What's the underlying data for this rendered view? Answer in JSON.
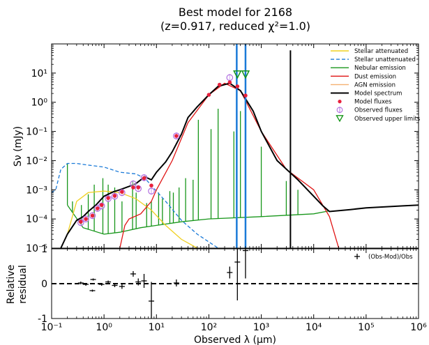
{
  "title_line1": "Best model for 2168",
  "title_line2": "(z=0.917, reduced χ²=1.0)",
  "chart_data": {
    "type": "line",
    "main": {
      "xlabel": "Observed λ (μm)",
      "ylabel": "Sν (mJy)",
      "xscale": "log",
      "yscale": "log",
      "xlim": [
        0.1,
        1000000
      ],
      "ylim": [
        1e-05,
        100
      ],
      "legend_position": "top-right",
      "legend": [
        {
          "label": "Stellar attenuated",
          "color": "#f0d020",
          "style": "line"
        },
        {
          "label": "Stellar unattenuated",
          "color": "#1a7ad8",
          "style": "dashed"
        },
        {
          "label": "Nebular emission",
          "color": "#17961a",
          "style": "line"
        },
        {
          "label": "Dust emission",
          "color": "#e01515",
          "style": "line"
        },
        {
          "label": "AGN emission",
          "color": "#f5b070",
          "style": "line"
        },
        {
          "label": "Model spectrum",
          "color": "#000000",
          "style": "line"
        },
        {
          "label": "Model fluxes",
          "color": "#e8203c",
          "style": "dot"
        },
        {
          "label": "Observed fluxes",
          "color": "#b06ce0",
          "style": "circle"
        },
        {
          "label": "Observed upper limits",
          "color": "#17961a",
          "style": "triangle"
        }
      ],
      "series": {
        "model_spectrum": [
          [
            0.15,
            1e-05
          ],
          [
            0.2,
            3e-05
          ],
          [
            0.3,
            9e-05
          ],
          [
            0.4,
            0.00012
          ],
          [
            0.5,
            0.00018
          ],
          [
            0.7,
            0.0003
          ],
          [
            1,
            0.0006
          ],
          [
            1.5,
            0.00085
          ],
          [
            2,
            0.001
          ],
          [
            3,
            0.0013
          ],
          [
            4,
            0.0016
          ],
          [
            6,
            0.0028
          ],
          [
            8,
            0.0022
          ],
          [
            10,
            0.004
          ],
          [
            15,
            0.009
          ],
          [
            20,
            0.02
          ],
          [
            30,
            0.08
          ],
          [
            40,
            0.3
          ],
          [
            60,
            0.7
          ],
          [
            100,
            1.8
          ],
          [
            150,
            3.5
          ],
          [
            250,
            4.5
          ],
          [
            400,
            2.5
          ],
          [
            700,
            0.5
          ],
          [
            1000,
            0.1
          ],
          [
            2000,
            0.01
          ],
          [
            5000,
            0.0022
          ],
          [
            10000,
            0.0006
          ],
          [
            15000,
            0.00028
          ],
          [
            20000,
            0.00018
          ],
          [
            50000,
            0.00021
          ],
          [
            100000,
            0.00024
          ],
          [
            500000,
            0.00028
          ],
          [
            1000000,
            0.0003
          ]
        ],
        "stellar_attenuated": [
          [
            0.2,
            3e-05
          ],
          [
            0.3,
            0.0004
          ],
          [
            0.5,
            0.0008
          ],
          [
            1,
            0.0009
          ],
          [
            2,
            0.0008
          ],
          [
            4,
            0.0005
          ],
          [
            8,
            0.0002
          ],
          [
            15,
            6e-05
          ],
          [
            30,
            2e-05
          ],
          [
            60,
            1e-05
          ]
        ],
        "stellar_unattenuated": [
          [
            0.1,
            0.0008
          ],
          [
            0.12,
            0.001
          ],
          [
            0.15,
            0.005
          ],
          [
            0.2,
            0.008
          ],
          [
            0.3,
            0.008
          ],
          [
            0.5,
            0.007
          ],
          [
            1,
            0.006
          ],
          [
            2,
            0.004
          ],
          [
            4,
            0.0035
          ],
          [
            6,
            0.0025
          ],
          [
            8,
            0.0014
          ],
          [
            15,
            0.0004
          ],
          [
            30,
            9e-05
          ],
          [
            60,
            3e-05
          ],
          [
            150,
            1e-05
          ]
        ],
        "nebular_emission": [
          [
            0.2,
            0.0003
          ],
          [
            0.4,
            5e-05
          ],
          [
            1,
            3e-05
          ],
          [
            2,
            3.5e-05
          ],
          [
            5,
            5e-05
          ],
          [
            10,
            6e-05
          ],
          [
            30,
            8e-05
          ],
          [
            100,
            0.0001
          ],
          [
            1000,
            0.00012
          ],
          [
            10000,
            0.00015
          ],
          [
            20000,
            0.00019
          ]
        ],
        "dust_emission": [
          [
            2,
            1e-05
          ],
          [
            2.5,
            6e-05
          ],
          [
            3,
            0.0001
          ],
          [
            5,
            0.00015
          ],
          [
            8,
            0.0004
          ],
          [
            10,
            0.001
          ],
          [
            20,
            0.01
          ],
          [
            40,
            0.2
          ],
          [
            100,
            1.8
          ],
          [
            200,
            4.5
          ],
          [
            400,
            2.5
          ],
          [
            1000,
            0.1
          ],
          [
            3000,
            0.005
          ],
          [
            10000,
            0.001
          ],
          [
            20000,
            0.00012
          ],
          [
            30000,
            1e-05
          ]
        ]
      },
      "nebular_lines": [
        [
          0.2,
          0.008
        ],
        [
          0.25,
          0.0004
        ],
        [
          0.37,
          0.0003
        ],
        [
          0.5,
          0.0007
        ],
        [
          0.65,
          0.0015
        ],
        [
          0.95,
          0.0025
        ],
        [
          1.2,
          0.0015
        ],
        [
          1.6,
          0.0012
        ],
        [
          2.2,
          0.0004
        ],
        [
          3.5,
          0.002
        ],
        [
          4.1,
          0.0008
        ],
        [
          6.5,
          0.00035
        ],
        [
          8,
          0.0004
        ],
        [
          11,
          0.0008
        ],
        [
          13,
          0.0005
        ],
        [
          18,
          0.0009
        ],
        [
          21,
          0.0008
        ],
        [
          27,
          0.0012
        ],
        [
          36,
          0.0025
        ],
        [
          50,
          0.0022
        ],
        [
          63,
          0.25
        ],
        [
          110,
          0.12
        ],
        [
          150,
          0.6
        ],
        [
          300,
          0.1
        ],
        [
          400,
          0.5
        ],
        [
          1000,
          0.03
        ],
        [
          3000,
          0.002
        ],
        [
          5000,
          0.001
        ]
      ],
      "vertical_lines": [
        {
          "x": 340,
          "color": "#1a7ad8"
        },
        {
          "x": 500,
          "color": "#1a7ad8"
        },
        {
          "x": 3600,
          "color": "#000000",
          "ymax": 60
        }
      ],
      "model_fluxes": [
        [
          0.36,
          8e-05
        ],
        [
          0.45,
          0.0001
        ],
        [
          0.6,
          0.00013
        ],
        [
          0.75,
          0.00023
        ],
        [
          0.9,
          0.0003
        ],
        [
          1.2,
          0.00052
        ],
        [
          1.6,
          0.00062
        ],
        [
          2.2,
          0.00085
        ],
        [
          3.6,
          0.0012
        ],
        [
          4.5,
          0.0012
        ],
        [
          5.8,
          0.0025
        ],
        [
          8,
          0.0014
        ],
        [
          24,
          0.07
        ],
        [
          100,
          1.8
        ],
        [
          160,
          4.0
        ],
        [
          250,
          4.8
        ],
        [
          350,
          3.5
        ],
        [
          500,
          1.7
        ]
      ],
      "observed_fluxes": [
        [
          0.36,
          7.5e-05
        ],
        [
          0.45,
          0.0001
        ],
        [
          0.6,
          0.00013
        ],
        [
          0.75,
          0.00023
        ],
        [
          0.9,
          0.00028
        ],
        [
          1.2,
          0.0005
        ],
        [
          1.6,
          0.0006
        ],
        [
          2.2,
          0.0008
        ],
        [
          3.6,
          0.0016
        ],
        [
          4.5,
          0.0011
        ],
        [
          5.8,
          0.0026
        ],
        [
          8,
          0.0009
        ],
        [
          24,
          0.07
        ],
        [
          250,
          7.0
        ]
      ],
      "upper_limits": [
        [
          350,
          9.0
        ],
        [
          500,
          9.0
        ]
      ]
    },
    "residual": {
      "ylabel": "Relative residual",
      "xscale": "log",
      "xlim": [
        0.1,
        1000000
      ],
      "ylim": [
        -1,
        1
      ],
      "yticks": [
        "-1",
        "0",
        "1"
      ],
      "legend_label": "(Obs-Mod)/Obs",
      "zero_line": 0,
      "points": [
        [
          0.36,
          0.02,
          0.04
        ],
        [
          0.45,
          -0.02,
          0.04
        ],
        [
          0.6,
          -0.2,
          0.03
        ],
        [
          0.62,
          0.12,
          0.03
        ],
        [
          0.9,
          -0.02,
          0.04
        ],
        [
          1.2,
          0.05,
          0.04
        ],
        [
          1.6,
          -0.05,
          0.05
        ],
        [
          2.2,
          -0.08,
          0.07
        ],
        [
          3.6,
          0.28,
          0.08
        ],
        [
          4.5,
          0.05,
          0.1
        ],
        [
          5.8,
          0.08,
          0.2
        ],
        [
          8,
          -0.5,
          0.55
        ],
        [
          24,
          0.02,
          0.1
        ],
        [
          250,
          0.32,
          0.17
        ],
        [
          350,
          0.62,
          1.1
        ],
        [
          500,
          0.95,
          0.8
        ]
      ]
    },
    "xticks": [
      "10⁻¹",
      "10⁰",
      "10¹",
      "10²",
      "10³",
      "10⁴",
      "10⁵",
      "10⁶"
    ],
    "yticks_main": [
      "10⁻⁵",
      "10⁻⁴",
      "10⁻³",
      "10⁻²",
      "10⁻¹",
      "10⁰",
      "10¹"
    ]
  }
}
